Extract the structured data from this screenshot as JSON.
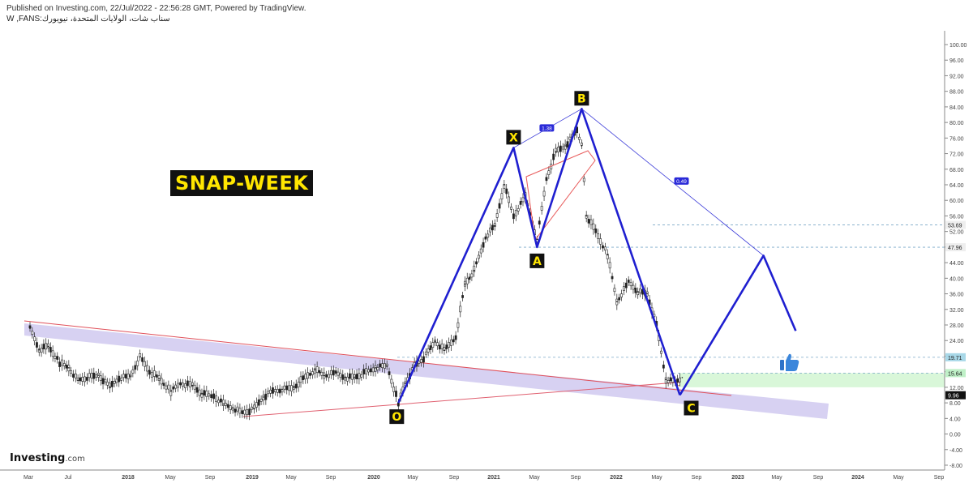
{
  "header": {
    "published": "Published on Investing.com, 22/Jul/2022 - 22:56:28 GMT, Powered by TradingView.",
    "symbol": "W ,FANS:سناب شات، الولايات المتحدة، نيويورك"
  },
  "snap_label": "SNAP-WEEK",
  "logo": {
    "name": "Investing",
    "suffix": ".com"
  },
  "colors": {
    "candle": "#222222",
    "pattern": "#1f1fd0",
    "trend": "#e0505a",
    "band": "#c9c2ee",
    "green_zone": "#d9f7d9",
    "label_bg": "#111111",
    "label_fg": "#ffe600"
  },
  "chart_data": {
    "type": "line",
    "title": "SNAP-WEEK",
    "y_axis": {
      "ticks": [
        "100.00",
        "96.00",
        "92.00",
        "88.00",
        "84.00",
        "80.00",
        "76.00",
        "72.00",
        "68.00",
        "64.00",
        "60.00",
        "56.00",
        "52.00",
        "48.00",
        "44.00",
        "40.00",
        "36.00",
        "32.00",
        "28.00",
        "24.00",
        "20.00",
        "16.00",
        "12.00",
        "8.00",
        "4.00",
        "0.00",
        "-4.00",
        "-8.00"
      ],
      "range": [
        -8,
        102
      ]
    },
    "x_axis": {
      "ticks": [
        "Mar",
        "Jul",
        "2018",
        "May",
        "Sep",
        "2019",
        "May",
        "Sep",
        "2020",
        "May",
        "Sep",
        "2021",
        "May",
        "Sep",
        "2022",
        "May",
        "Sep",
        "2023",
        "May",
        "Sep",
        "2024",
        "May",
        "Sep"
      ]
    },
    "price_tags": [
      {
        "label": "53.69",
        "value": 53.69
      },
      {
        "label": "47.96",
        "value": 47.96
      },
      {
        "label": "19.71",
        "value": 19.71
      },
      {
        "label": "15.64",
        "value": 15.64
      },
      {
        "label": "9.96",
        "value": 9.96
      }
    ],
    "pattern_points": [
      {
        "name": "O",
        "date": "2020-03-16",
        "value": 8.0
      },
      {
        "name": "X",
        "date": "2021-03-01",
        "value": 73.5
      },
      {
        "name": "A",
        "date": "2021-05-10",
        "value": 48.0
      },
      {
        "name": "B",
        "date": "2021-09-20",
        "value": 83.5
      },
      {
        "name": "C",
        "date": "2022-07-11",
        "value": 10.0
      }
    ],
    "projection": [
      {
        "date": "2022-07-11",
        "value": 10.0
      },
      {
        "date": "2023-03-20",
        "value": 45.8
      },
      {
        "date": "2023-06-26",
        "value": 26.5
      }
    ],
    "ratios": [
      {
        "label": "1.38"
      },
      {
        "label": "0.49"
      }
    ],
    "series": [
      {
        "values": [
          {
            "date": "2017-03-06",
            "value": 27.1
          },
          {
            "date": "2017-04-03",
            "value": 21.6
          },
          {
            "date": "2017-05-01",
            "value": 22.5
          },
          {
            "date": "2017-06-05",
            "value": 18.3
          },
          {
            "date": "2017-07-03",
            "value": 17.0
          },
          {
            "date": "2017-07-31",
            "value": 13.8
          },
          {
            "date": "2017-08-28",
            "value": 14.5
          },
          {
            "date": "2017-10-02",
            "value": 15.1
          },
          {
            "date": "2017-11-06",
            "value": 12.1
          },
          {
            "date": "2017-12-04",
            "value": 14.4
          },
          {
            "date": "2018-01-08",
            "value": 14.9
          },
          {
            "date": "2018-02-05",
            "value": 19.8
          },
          {
            "date": "2018-03-05",
            "value": 16.0
          },
          {
            "date": "2018-04-02",
            "value": 14.2
          },
          {
            "date": "2018-05-07",
            "value": 11.0
          },
          {
            "date": "2018-06-04",
            "value": 13.0
          },
          {
            "date": "2018-07-09",
            "value": 12.5
          },
          {
            "date": "2018-08-06",
            "value": 10.3
          },
          {
            "date": "2018-09-10",
            "value": 9.7
          },
          {
            "date": "2018-10-08",
            "value": 7.7
          },
          {
            "date": "2018-11-05",
            "value": 6.7
          },
          {
            "date": "2018-12-03",
            "value": 5.5
          },
          {
            "date": "2019-01-07",
            "value": 6.5
          },
          {
            "date": "2019-02-04",
            "value": 9.5
          },
          {
            "date": "2019-03-04",
            "value": 11.0
          },
          {
            "date": "2019-04-01",
            "value": 11.5
          },
          {
            "date": "2019-05-06",
            "value": 12.0
          },
          {
            "date": "2019-06-03",
            "value": 14.2
          },
          {
            "date": "2019-07-08",
            "value": 16.5
          },
          {
            "date": "2019-08-05",
            "value": 15.0
          },
          {
            "date": "2019-09-09",
            "value": 15.6
          },
          {
            "date": "2019-10-07",
            "value": 14.5
          },
          {
            "date": "2019-11-04",
            "value": 14.6
          },
          {
            "date": "2019-12-02",
            "value": 15.6
          },
          {
            "date": "2020-01-06",
            "value": 17.0
          },
          {
            "date": "2020-02-10",
            "value": 17.5
          },
          {
            "date": "2020-03-16",
            "value": 8.0
          },
          {
            "date": "2020-04-06",
            "value": 13.0
          },
          {
            "date": "2020-05-04",
            "value": 17.5
          },
          {
            "date": "2020-06-01",
            "value": 19.5
          },
          {
            "date": "2020-07-06",
            "value": 23.8
          },
          {
            "date": "2020-08-03",
            "value": 21.5
          },
          {
            "date": "2020-09-07",
            "value": 25.0
          },
          {
            "date": "2020-10-05",
            "value": 38.5
          },
          {
            "date": "2020-11-02",
            "value": 42.0
          },
          {
            "date": "2020-12-07",
            "value": 50.5
          },
          {
            "date": "2021-01-04",
            "value": 53.5
          },
          {
            "date": "2021-02-01",
            "value": 64.0
          },
          {
            "date": "2021-03-01",
            "value": 56.0
          },
          {
            "date": "2021-04-05",
            "value": 61.0
          },
          {
            "date": "2021-05-10",
            "value": 50.0
          },
          {
            "date": "2021-06-07",
            "value": 65.5
          },
          {
            "date": "2021-07-05",
            "value": 72.5
          },
          {
            "date": "2021-08-02",
            "value": 74.0
          },
          {
            "date": "2021-09-06",
            "value": 78.0
          },
          {
            "date": "2021-09-20",
            "value": 74.0
          },
          {
            "date": "2021-10-04",
            "value": 56.0
          },
          {
            "date": "2021-11-01",
            "value": 52.0
          },
          {
            "date": "2021-12-06",
            "value": 46.0
          },
          {
            "date": "2022-01-03",
            "value": 34.0
          },
          {
            "date": "2022-02-07",
            "value": 39.0
          },
          {
            "date": "2022-03-07",
            "value": 36.5
          },
          {
            "date": "2022-04-04",
            "value": 36.0
          },
          {
            "date": "2022-05-02",
            "value": 28.0
          },
          {
            "date": "2022-05-30",
            "value": 14.0
          },
          {
            "date": "2022-06-27",
            "value": 13.5
          },
          {
            "date": "2022-07-18",
            "value": 14.5
          }
        ]
      }
    ]
  }
}
